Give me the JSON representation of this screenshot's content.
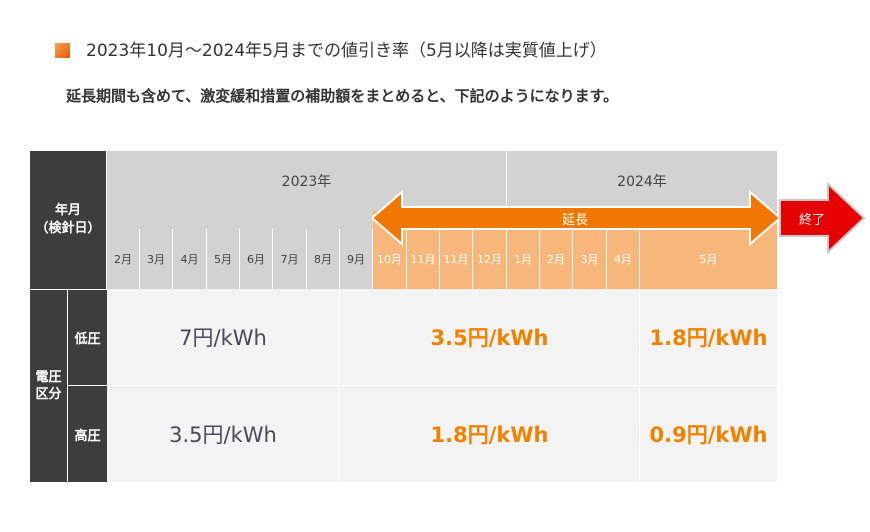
{
  "header": {
    "title": "2023年10月～2024年5月までの値引き率（5月以降は実質値上げ）",
    "subtitle": "延長期間も含めて、激変緩和措置の補助額をまとめると、下記のようになります。"
  },
  "table": {
    "corner_label_line1": "年月",
    "corner_label_line2": "（検針日）",
    "years": [
      "2023年",
      "2024年"
    ],
    "months": [
      "2月",
      "3月",
      "4月",
      "5月",
      "6月",
      "7月",
      "8月",
      "9月",
      "10月",
      "11月",
      "11月",
      "12月",
      "1月",
      "2月",
      "3月",
      "4月",
      "5月"
    ],
    "group_label_line1": "電圧",
    "group_label_line2": "区分",
    "rows": [
      {
        "label": "低圧",
        "values": [
          "7円/kWh",
          "3.5円/kWh",
          "1.8円/kWh"
        ]
      },
      {
        "label": "高圧",
        "values": [
          "3.5円/kWh",
          "1.8円/kWh",
          "0.9円/kWh"
        ]
      }
    ]
  },
  "arrows": {
    "extension_label": "延長",
    "end_label": "終了"
  },
  "colors": {
    "accent_orange": "#f08200",
    "arrow_orange": "#f07800",
    "end_red": "#e60000",
    "dark_header": "#3d3d3d",
    "light_header": "#d2d2d2",
    "orange_header": "#f7b77a"
  }
}
